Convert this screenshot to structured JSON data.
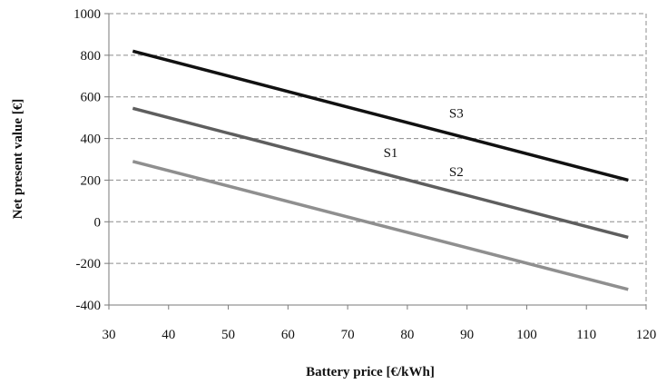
{
  "chart_data": {
    "type": "line",
    "title": "",
    "xlabel": "Battery price [€/kWh]",
    "ylabel": "Net present  value [€]",
    "xlim": [
      30,
      120
    ],
    "ylim": [
      -400,
      1000
    ],
    "xticks": [
      30,
      40,
      50,
      60,
      70,
      80,
      90,
      100,
      110,
      120
    ],
    "yticks": [
      -400,
      -200,
      0,
      200,
      400,
      600,
      800,
      1000
    ],
    "grid": true,
    "legend": "none",
    "series": [
      {
        "name": "S1",
        "color": "#8f8f8f",
        "label_at": [
          76,
          310
        ],
        "x": [
          34,
          117
        ],
        "y": [
          290,
          -325
        ]
      },
      {
        "name": "S2",
        "color": "#5e5e5e",
        "label_at": [
          87,
          220
        ],
        "x": [
          34,
          117
        ],
        "y": [
          545,
          -75
        ]
      },
      {
        "name": "S3",
        "color": "#111111",
        "label_at": [
          87,
          500
        ],
        "x": [
          34,
          117
        ],
        "y": [
          820,
          200
        ]
      }
    ]
  }
}
